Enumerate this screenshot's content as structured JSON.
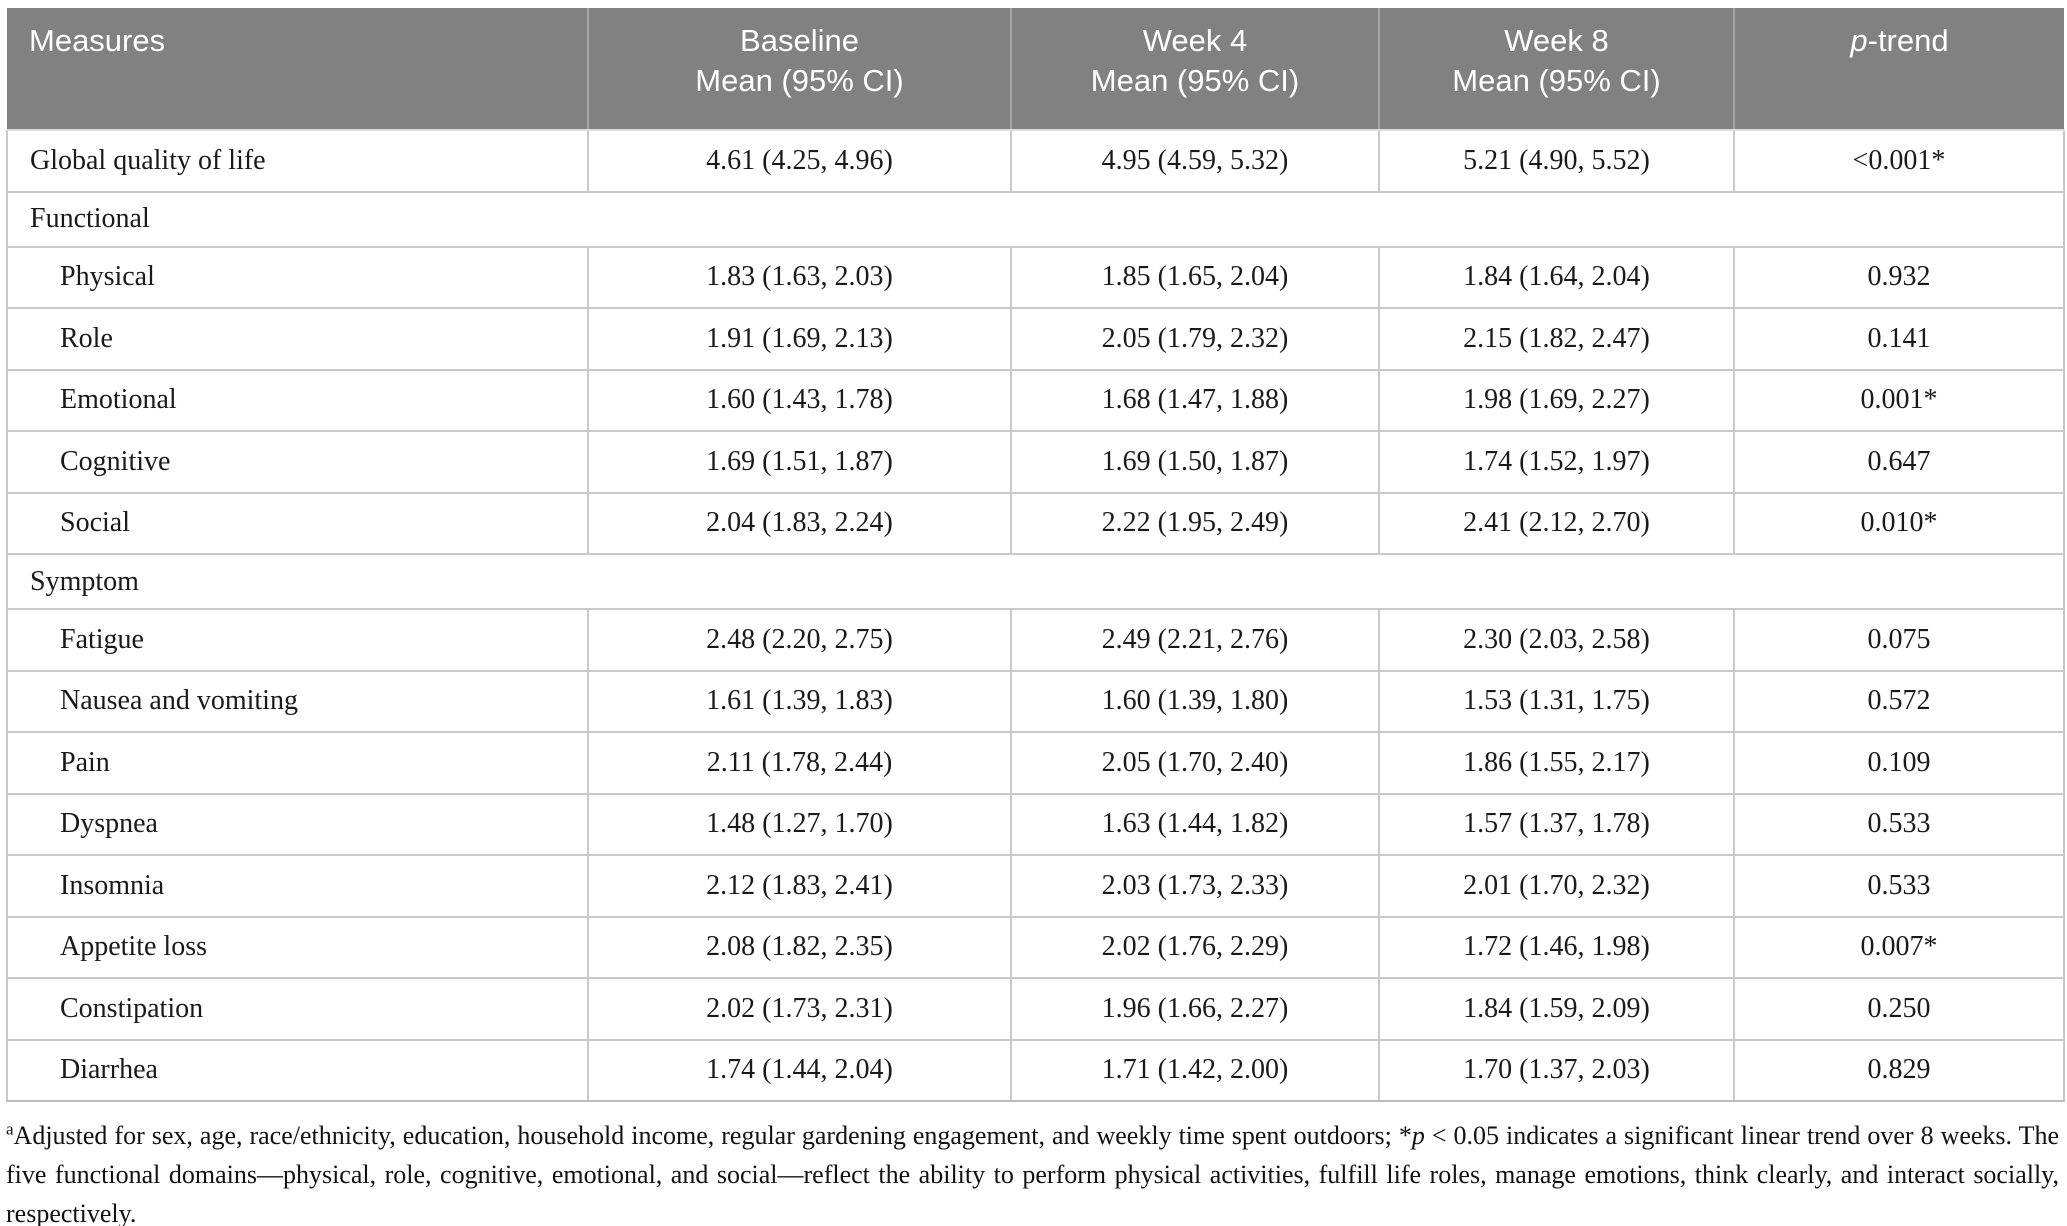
{
  "colors": {
    "header_bg": "#818181",
    "header_text": "#ffffff",
    "grid_line": "#c9c9c9"
  },
  "header": {
    "columns": [
      {
        "line1": "Measures",
        "line2": ""
      },
      {
        "line1": "Baseline",
        "line2": "Mean (95% CI)"
      },
      {
        "line1": "Week 4",
        "line2": "Mean (95% CI)"
      },
      {
        "line1": "Week 8",
        "line2": "Mean (95% CI)"
      },
      {
        "italic": "p",
        "rest": "-trend"
      }
    ]
  },
  "table": {
    "rows": [
      {
        "type": "data",
        "indent": 0,
        "label": "Global quality of life",
        "baseline": "4.61 (4.25, 4.96)",
        "week4": "4.95 (4.59, 5.32)",
        "week8": "5.21 (4.90, 5.52)",
        "p_trend": "<0.001*"
      },
      {
        "type": "section",
        "label": "Functional"
      },
      {
        "type": "data",
        "indent": 1,
        "label": "Physical",
        "baseline": "1.83 (1.63, 2.03)",
        "week4": "1.85 (1.65, 2.04)",
        "week8": "1.84 (1.64, 2.04)",
        "p_trend": "0.932"
      },
      {
        "type": "data",
        "indent": 1,
        "label": "Role",
        "baseline": "1.91 (1.69, 2.13)",
        "week4": "2.05 (1.79, 2.32)",
        "week8": "2.15 (1.82, 2.47)",
        "p_trend": "0.141"
      },
      {
        "type": "data",
        "indent": 1,
        "label": "Emotional",
        "baseline": "1.60 (1.43, 1.78)",
        "week4": "1.68 (1.47, 1.88)",
        "week8": "1.98 (1.69, 2.27)",
        "p_trend": "0.001*"
      },
      {
        "type": "data",
        "indent": 1,
        "label": "Cognitive",
        "baseline": "1.69 (1.51, 1.87)",
        "week4": "1.69 (1.50, 1.87)",
        "week8": "1.74 (1.52, 1.97)",
        "p_trend": "0.647"
      },
      {
        "type": "data",
        "indent": 1,
        "label": "Social",
        "baseline": "2.04 (1.83, 2.24)",
        "week4": "2.22 (1.95, 2.49)",
        "week8": "2.41 (2.12, 2.70)",
        "p_trend": "0.010*"
      },
      {
        "type": "section",
        "label": "Symptom"
      },
      {
        "type": "data",
        "indent": 1,
        "label": "Fatigue",
        "baseline": "2.48 (2.20, 2.75)",
        "week4": "2.49 (2.21, 2.76)",
        "week8": "2.30 (2.03, 2.58)",
        "p_trend": "0.075"
      },
      {
        "type": "data",
        "indent": 1,
        "label": "Nausea and vomiting",
        "baseline": "1.61 (1.39, 1.83)",
        "week4": "1.60 (1.39, 1.80)",
        "week8": "1.53 (1.31, 1.75)",
        "p_trend": "0.572"
      },
      {
        "type": "data",
        "indent": 1,
        "label": "Pain",
        "baseline": "2.11 (1.78, 2.44)",
        "week4": "2.05 (1.70, 2.40)",
        "week8": "1.86 (1.55, 2.17)",
        "p_trend": "0.109"
      },
      {
        "type": "data",
        "indent": 1,
        "label": "Dyspnea",
        "baseline": "1.48 (1.27, 1.70)",
        "week4": "1.63 (1.44, 1.82)",
        "week8": "1.57 (1.37, 1.78)",
        "p_trend": "0.533"
      },
      {
        "type": "data",
        "indent": 1,
        "label": "Insomnia",
        "baseline": "2.12 (1.83, 2.41)",
        "week4": "2.03 (1.73, 2.33)",
        "week8": "2.01 (1.70, 2.32)",
        "p_trend": "0.533"
      },
      {
        "type": "data",
        "indent": 1,
        "label": "Appetite loss",
        "baseline": "2.08 (1.82, 2.35)",
        "week4": "2.02 (1.76, 2.29)",
        "week8": "1.72 (1.46, 1.98)",
        "p_trend": "0.007*"
      },
      {
        "type": "data",
        "indent": 1,
        "label": "Constipation",
        "baseline": "2.02 (1.73, 2.31)",
        "week4": "1.96 (1.66, 2.27)",
        "week8": "1.84 (1.59, 2.09)",
        "p_trend": "0.250"
      },
      {
        "type": "data",
        "indent": 1,
        "label": "Diarrhea",
        "baseline": "1.74 (1.44, 2.04)",
        "week4": "1.71 (1.42, 2.00)",
        "week8": "1.70 (1.37, 2.03)",
        "p_trend": "0.829"
      }
    ]
  },
  "footnote": {
    "superscript": "a",
    "part1": "Adjusted for sex, age, race/ethnicity, education, household income, regular gardening engagement, and weekly time spent outdoors; *",
    "italic_p": "p",
    "part2": " < 0.05 indicates a significant linear trend over 8 weeks. The five functional domains—physical, role, cognitive, emotional, and social—reflect the ability to perform physical activities, fulfill life roles, manage emotions, think clearly, and interact socially, respectively."
  }
}
